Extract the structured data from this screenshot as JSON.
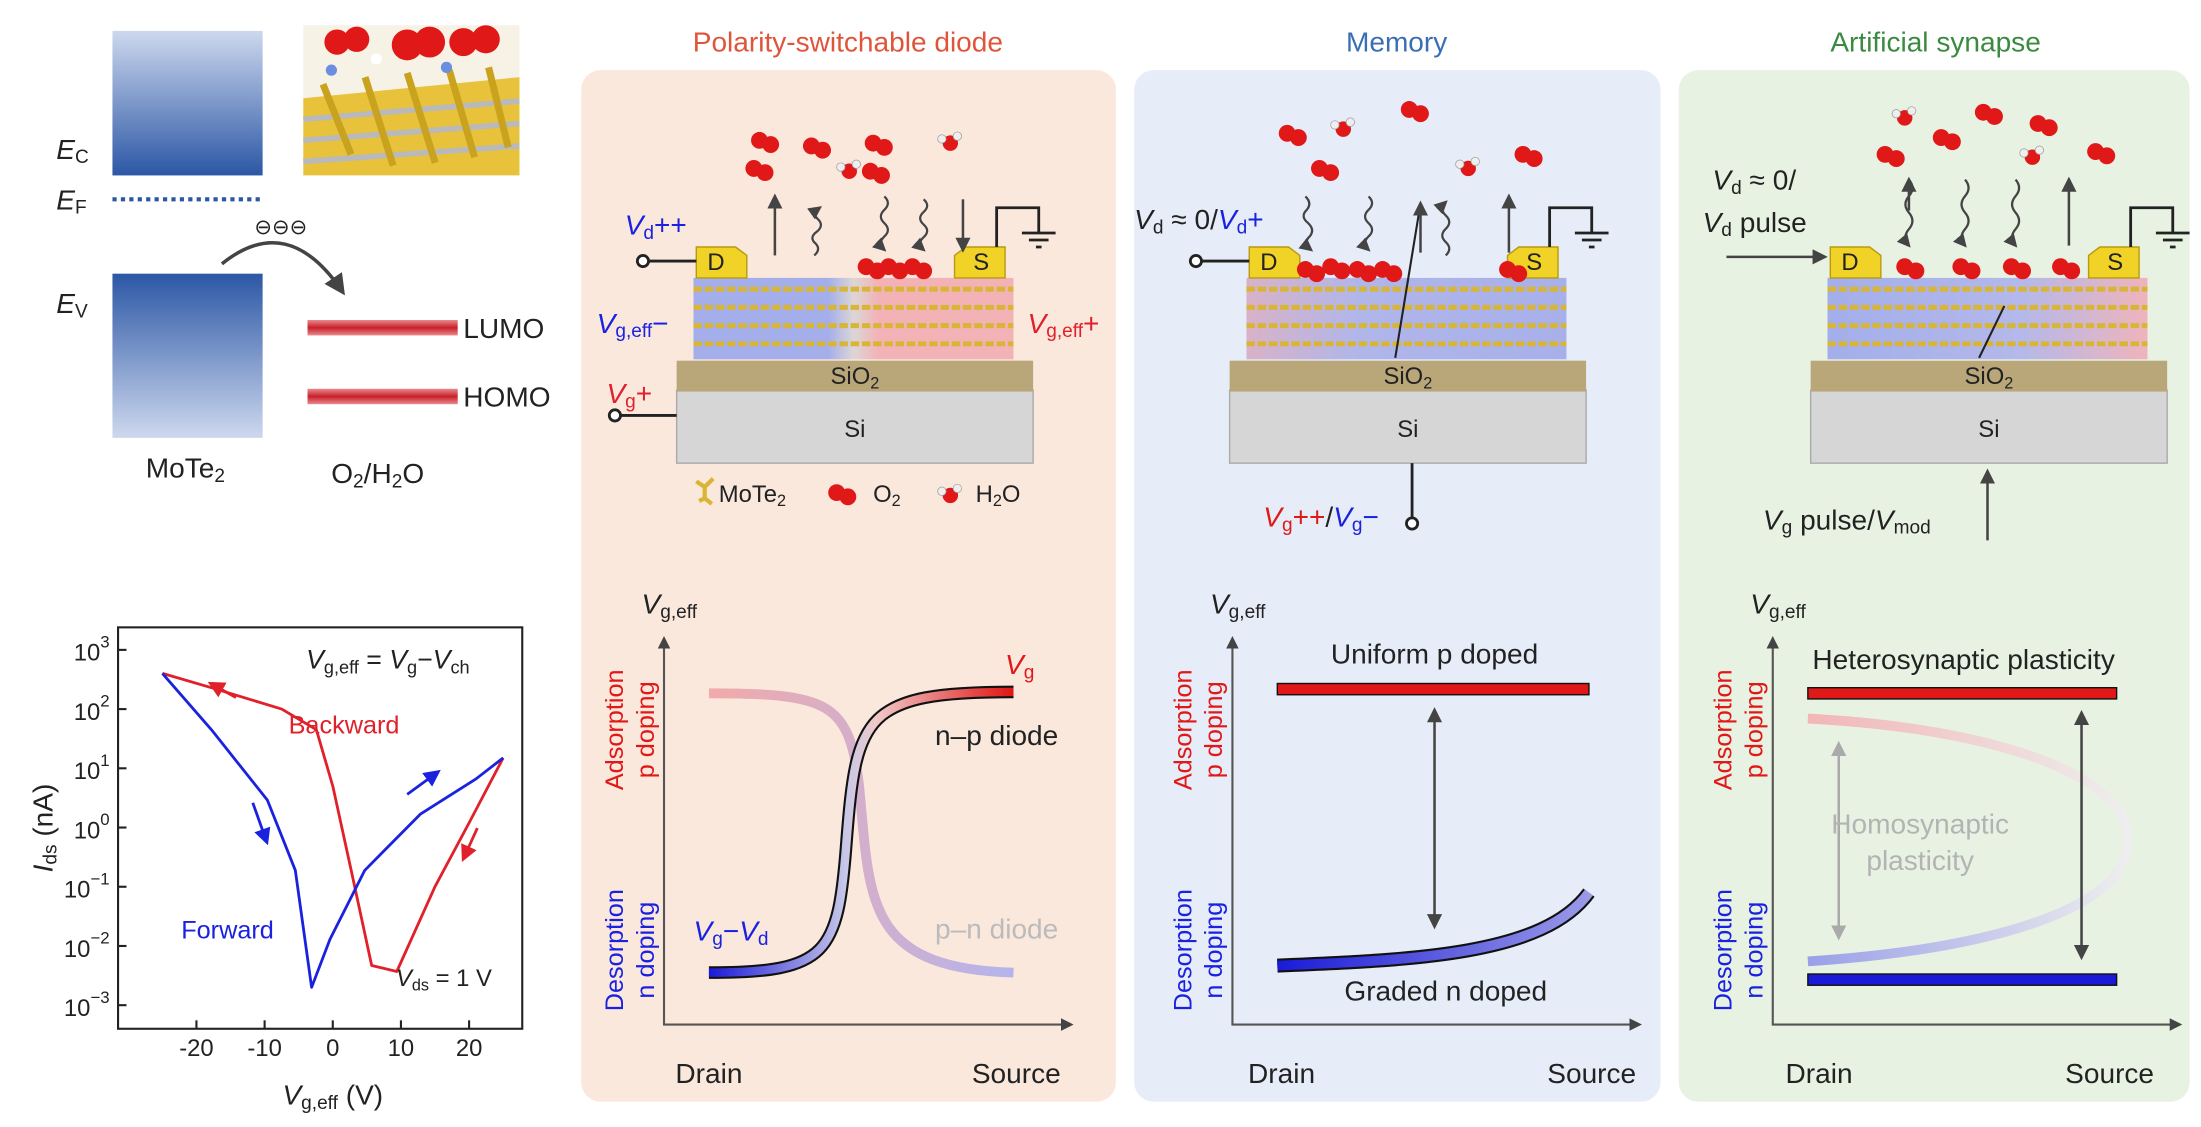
{
  "band_diagram": {
    "ec": [
      "E",
      "C"
    ],
    "ef": [
      "E",
      "F"
    ],
    "ev": [
      "E",
      "V"
    ],
    "electrons": "⊖⊖⊖",
    "lumo": "LUMO",
    "homo": "HOMO",
    "mote2": [
      "MoTe",
      "2"
    ],
    "o2h2o": [
      "O",
      "2",
      "/H",
      "2",
      "O"
    ]
  },
  "iv_plot": {
    "equation": [
      "V",
      "g,eff",
      " = ",
      "V",
      "g",
      "−",
      "V",
      "ch"
    ],
    "vds_label": [
      "V",
      "ds",
      " = 1 V"
    ],
    "y_label": [
      "I",
      "ds",
      " (nA)"
    ],
    "x_label": [
      "V",
      "g,eff",
      " (V)"
    ],
    "log_y": true,
    "xlim": [
      -31.5,
      27.8
    ],
    "ylim": [
      0.0004,
      2400
    ],
    "xticks": [
      -20,
      -10,
      0,
      10,
      20
    ],
    "yticks": [
      {
        "value": 1000,
        "label": "10",
        "exponent": "3"
      },
      {
        "value": 100,
        "label": "10",
        "exponent": "2"
      },
      {
        "value": 10,
        "label": "10",
        "exponent": "1"
      },
      {
        "value": 1,
        "label": "10",
        "exponent": "0"
      },
      {
        "value": 0.1,
        "label": "10",
        "exponent": "−1"
      },
      {
        "value": 0.01,
        "label": "10",
        "exponent": "−2"
      },
      {
        "value": 0.001,
        "label": "10",
        "exponent": "−3"
      }
    ],
    "series": [
      {
        "name": "Backward",
        "color": "#e0202a",
        "x": [
          25,
          20,
          15,
          9.4,
          5.7,
          2.7,
          0,
          -2.4,
          -7.5,
          -17.8,
          -25
        ],
        "values": [
          15,
          1.2,
          0.1,
          0.0037,
          0.0047,
          0.19,
          5,
          45,
          100,
          230,
          400
        ]
      },
      {
        "name": "Forward",
        "color": "#1a22e0",
        "x": [
          -25,
          -17.8,
          -9.6,
          -5.5,
          -3.1,
          -0.4,
          4.7,
          12.9,
          21,
          25
        ],
        "values": [
          400,
          45,
          2.9,
          0.19,
          0.002,
          0.013,
          0.19,
          1.7,
          6.6,
          15
        ]
      }
    ]
  },
  "panels": [
    {
      "title": "Polarity-switchable diode",
      "vd": [
        "V",
        "d",
        "++"
      ],
      "vg_eff_minus": [
        "V",
        "g,eff",
        "−"
      ],
      "vg_eff_plus": [
        "V",
        "g,eff",
        "+"
      ],
      "vg": [
        "V",
        "g",
        "+"
      ],
      "drain_contact": "D",
      "source_contact": "S",
      "sio2": [
        "SiO",
        "2"
      ],
      "si": "Si",
      "legend": [
        [
          "MoTe",
          "2"
        ],
        [
          "O",
          "2"
        ],
        [
          "H",
          "2",
          "O"
        ]
      ],
      "y_axis": [
        "V",
        "g,eff"
      ],
      "adsorption": [
        "Adsorption",
        "p doping"
      ],
      "desorption": [
        "Desorption",
        "n doping"
      ],
      "drain": "Drain",
      "source": "Source",
      "curve_vg": [
        "V",
        "g"
      ],
      "np_diode": "n–p diode",
      "curve_vgvd": [
        "V",
        "g",
        "−",
        "V",
        "d"
      ],
      "pn_diode": "p–n diode"
    },
    {
      "title": "Memory",
      "vd": [
        "V",
        "d",
        " ≈ 0/",
        "V",
        "d",
        "+"
      ],
      "vg": [
        "V",
        "g",
        "++",
        "/",
        "V",
        "g",
        "−"
      ],
      "drain_contact": "D",
      "source_contact": "S",
      "sio2": [
        "SiO",
        "2"
      ],
      "si": "Si",
      "y_axis": [
        "V",
        "g,eff"
      ],
      "adsorption": [
        "Adsorption",
        "p doping"
      ],
      "desorption": [
        "Desorption",
        "n doping"
      ],
      "drain": "Drain",
      "source": "Source",
      "uniform": "Uniform p doped",
      "graded": "Graded n doped"
    },
    {
      "title": "Artificial synapse",
      "vd_line1": [
        "V",
        "d",
        " ≈ 0/"
      ],
      "vd_line2": [
        "V",
        "d",
        " pulse"
      ],
      "vg": [
        "V",
        "g",
        " pulse/",
        "V",
        "mod"
      ],
      "drain_contact": "D",
      "source_contact": "S",
      "sio2": [
        "SiO",
        "2"
      ],
      "si": "Si",
      "y_axis": [
        "V",
        "g,eff"
      ],
      "adsorption": [
        "Adsorption",
        "p doping"
      ],
      "desorption": [
        "Desorption",
        "n doping"
      ],
      "drain": "Drain",
      "source": "Source",
      "heterosynaptic": "Heterosynaptic plasticity",
      "homosynaptic": [
        "Homosynaptic",
        "plasticity"
      ]
    }
  ]
}
